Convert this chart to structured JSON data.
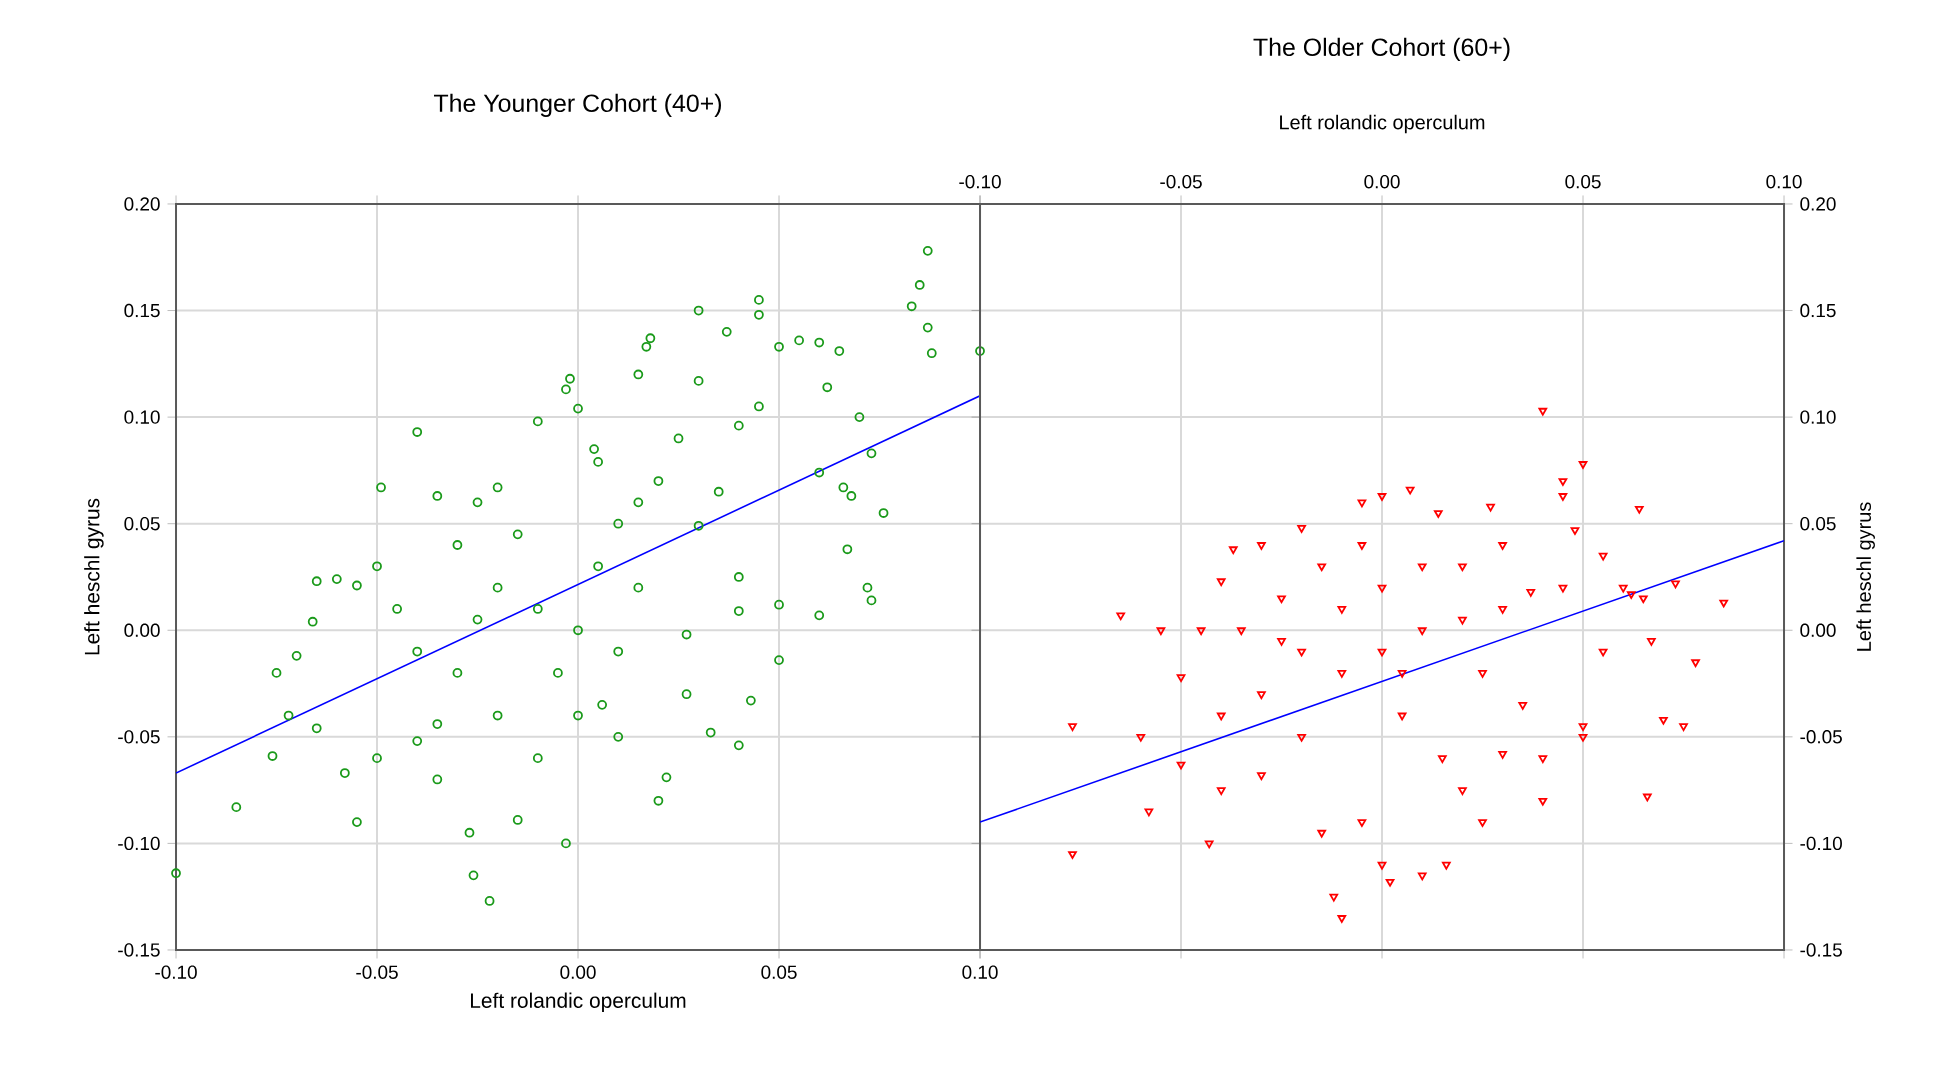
{
  "chart_data": [
    {
      "type": "scatter",
      "title": "The Younger Cohort (40+)",
      "xlabel": "Left rolandic operculum",
      "ylabel": "Left heschl gyrus",
      "xlim": [
        -0.1,
        0.1
      ],
      "ylim": [
        -0.15,
        0.2
      ],
      "xticks": [
        {
          "value": -0.1,
          "label": "-0.10"
        },
        {
          "value": -0.05,
          "label": "-0.05"
        },
        {
          "value": 0,
          "label": "0.00"
        },
        {
          "value": 0.05,
          "label": "0.05"
        },
        {
          "value": 0.1,
          "label": "0.10"
        }
      ],
      "yticks": [
        {
          "value": -0.15,
          "label": "-0.15"
        },
        {
          "value": -0.1,
          "label": "-0.10"
        },
        {
          "value": -0.05,
          "label": "-0.05"
        },
        {
          "value": 0,
          "label": "0.00"
        },
        {
          "value": 0.05,
          "label": "0.05"
        },
        {
          "value": 0.1,
          "label": "0.10"
        },
        {
          "value": 0.15,
          "label": "0.15"
        },
        {
          "value": 0.2,
          "label": "0.20"
        }
      ],
      "grid": true,
      "series": [
        {
          "marker": "circle",
          "color": "#1a9a1a",
          "x": [
            0.087,
            0.085,
            0.083,
            0.087,
            0.088,
            0.1,
            0.045,
            0.045,
            0.03,
            0.037,
            0.055,
            0.05,
            0.06,
            0.018,
            0.017,
            0.062,
            0.065,
            0.03,
            0.015,
            0.073,
            0.07,
            0.04,
            0.045,
            0.06,
            0.066,
            0.068,
            0.076,
            0.067,
            0.073,
            0.072,
            0.04,
            0.05,
            0.06,
            0.03,
            0.04,
            0.05,
            0.027,
            0.04,
            0.033,
            0.027,
            0.006,
            0.022,
            0.043,
            0.02,
            -0.002,
            -0.003,
            0.0,
            -0.01,
            0.004,
            0.005,
            -0.02,
            -0.025,
            -0.035,
            -0.049,
            -0.04,
            -0.055,
            -0.06,
            -0.065,
            -0.066,
            -0.07,
            -0.075,
            -0.1,
            -0.085,
            -0.076,
            -0.072,
            -0.065,
            -0.055,
            -0.058,
            -0.05,
            -0.04,
            -0.035,
            -0.022,
            -0.026,
            -0.027,
            -0.015,
            -0.003,
            -0.01,
            -0.02,
            -0.03,
            -0.04,
            -0.045,
            -0.05,
            -0.03,
            -0.02,
            -0.01,
            0.0,
            0.005,
            0.01,
            0.015,
            0.02,
            -0.005,
            0.0,
            0.01,
            0.015,
            -0.015,
            -0.025,
            0.01,
            -0.035,
            0.025,
            0.035
          ],
          "values": [
            0.178,
            0.162,
            0.152,
            0.142,
            0.13,
            0.131,
            0.155,
            0.148,
            0.15,
            0.14,
            0.136,
            0.133,
            0.135,
            0.137,
            0.133,
            0.114,
            0.131,
            0.117,
            0.12,
            0.083,
            0.1,
            0.096,
            0.105,
            0.074,
            0.067,
            0.063,
            0.055,
            0.038,
            0.014,
            0.02,
            0.009,
            0.012,
            0.007,
            0.049,
            0.025,
            -0.014,
            -0.002,
            -0.054,
            -0.048,
            -0.03,
            -0.035,
            -0.069,
            -0.033,
            -0.08,
            0.118,
            0.113,
            0.104,
            0.098,
            0.085,
            0.079,
            0.067,
            0.06,
            0.063,
            0.067,
            0.093,
            0.021,
            0.024,
            0.023,
            0.004,
            -0.012,
            -0.02,
            -0.114,
            -0.083,
            -0.059,
            -0.04,
            -0.046,
            -0.09,
            -0.067,
            -0.06,
            -0.052,
            -0.044,
            -0.127,
            -0.115,
            -0.095,
            -0.089,
            -0.1,
            -0.06,
            -0.04,
            -0.02,
            -0.01,
            0.01,
            0.03,
            0.04,
            0.02,
            0.01,
            0.0,
            0.03,
            0.05,
            0.06,
            0.07,
            -0.02,
            -0.04,
            -0.01,
            0.02,
            0.045,
            0.005,
            -0.05,
            -0.07,
            0.09,
            0.065
          ]
        },
        {
          "type": "line",
          "color": "#0000ff",
          "x": [
            -0.1,
            0.1
          ],
          "values": [
            -0.067,
            0.11
          ]
        }
      ]
    },
    {
      "type": "scatter",
      "title": "The Older Cohort (60+)",
      "xlabel": "Left rolandic operculum",
      "ylabel": "Left heschl gyrus",
      "xlim": [
        -0.1,
        0.1
      ],
      "ylim": [
        -0.15,
        0.2
      ],
      "xticks": [
        {
          "value": -0.1,
          "label": "-0.10"
        },
        {
          "value": -0.05,
          "label": "-0.05"
        },
        {
          "value": 0,
          "label": "0.00"
        },
        {
          "value": 0.05,
          "label": "0.05"
        },
        {
          "value": 0.1,
          "label": "0.10"
        }
      ],
      "yticks": [
        {
          "value": -0.15,
          "label": "-0.15"
        },
        {
          "value": -0.1,
          "label": "-0.10"
        },
        {
          "value": -0.05,
          "label": "-0.05"
        },
        {
          "value": 0,
          "label": "0.00"
        },
        {
          "value": 0.05,
          "label": "0.05"
        },
        {
          "value": 0.1,
          "label": "0.10"
        },
        {
          "value": 0.15,
          "label": "0.15"
        },
        {
          "value": 0.2,
          "label": "0.20"
        }
      ],
      "grid": true,
      "series": [
        {
          "marker": "triangle",
          "color": "#ff0000",
          "x": [
            0.04,
            0.05,
            0.045,
            0.045,
            0.027,
            0.064,
            0.048,
            0.014,
            0.0,
            0.007,
            -0.005,
            -0.02,
            -0.03,
            -0.037,
            -0.04,
            -0.055,
            -0.065,
            -0.077,
            -0.077,
            -0.06,
            -0.05,
            -0.045,
            -0.04,
            -0.05,
            -0.058,
            -0.043,
            -0.04,
            -0.03,
            -0.02,
            -0.012,
            -0.01,
            -0.015,
            0.0,
            -0.005,
            0.002,
            0.01,
            0.016,
            0.02,
            0.025,
            0.04,
            0.03,
            0.04,
            0.05,
            0.05,
            0.055,
            0.06,
            0.062,
            0.065,
            0.067,
            0.07,
            0.075,
            0.066,
            0.085,
            0.078,
            0.073,
            0.037,
            0.03,
            0.02,
            0.01,
            0.0,
            -0.01,
            -0.02,
            -0.03,
            0.0,
            0.01,
            0.02,
            -0.01,
            -0.005,
            -0.015,
            0.005,
            0.015,
            -0.025,
            0.025,
            0.035,
            0.045,
            0.055,
            0.005,
            -0.035,
            -0.025,
            0.03
          ],
          "values": [
            0.103,
            0.078,
            0.07,
            0.063,
            0.058,
            0.057,
            0.047,
            0.055,
            0.063,
            0.066,
            0.06,
            0.048,
            0.04,
            0.038,
            0.023,
            0.0,
            0.007,
            -0.045,
            -0.105,
            -0.05,
            -0.022,
            0.0,
            -0.04,
            -0.063,
            -0.085,
            -0.1,
            -0.075,
            -0.068,
            -0.05,
            -0.125,
            -0.135,
            -0.095,
            -0.11,
            -0.09,
            -0.118,
            -0.115,
            -0.11,
            -0.075,
            -0.09,
            -0.08,
            -0.058,
            -0.06,
            -0.045,
            -0.05,
            -0.01,
            0.02,
            0.017,
            0.015,
            -0.005,
            -0.042,
            -0.045,
            -0.078,
            0.013,
            -0.015,
            0.022,
            0.018,
            0.01,
            0.005,
            0.0,
            -0.01,
            -0.02,
            -0.01,
            -0.03,
            0.02,
            0.03,
            0.03,
            0.01,
            0.04,
            0.03,
            -0.04,
            -0.06,
            -0.005,
            -0.02,
            -0.035,
            0.02,
            0.035,
            -0.02,
            0.0,
            0.015,
            0.04
          ]
        },
        {
          "type": "line",
          "color": "#0000ff",
          "x": [
            -0.1,
            0.1
          ],
          "values": [
            -0.09,
            0.042
          ]
        }
      ]
    }
  ]
}
